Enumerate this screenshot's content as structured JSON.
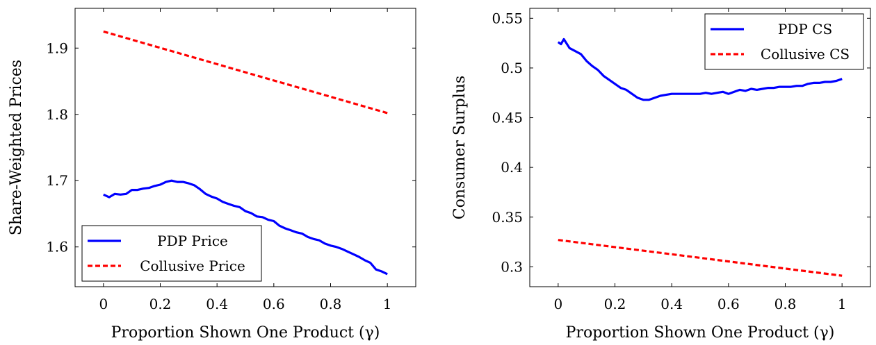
{
  "chart_data": [
    {
      "type": "line",
      "xlabel": "Proportion Shown One Product (γ)",
      "ylabel": "Share-Weighted Prices",
      "xlim": [
        -0.1,
        1.1
      ],
      "ylim": [
        1.54,
        1.96
      ],
      "xticks": [
        0,
        0.2,
        0.4,
        0.6,
        0.8,
        1
      ],
      "xtick_labels": [
        "0",
        "0.2",
        "0.4",
        "0.6",
        "0.8",
        "1"
      ],
      "yticks": [
        1.6,
        1.7,
        1.8,
        1.9
      ],
      "ytick_labels": [
        "1.6",
        "1.7",
        "1.8",
        "1.9"
      ],
      "legend_position": "bottom-left",
      "series": [
        {
          "name": "PDP Price",
          "color": "#0000ff",
          "style": "solid",
          "x": [
            0,
            0.02,
            0.04,
            0.06,
            0.08,
            0.1,
            0.12,
            0.14,
            0.16,
            0.18,
            0.2,
            0.22,
            0.24,
            0.26,
            0.28,
            0.3,
            0.32,
            0.34,
            0.36,
            0.38,
            0.4,
            0.42,
            0.44,
            0.46,
            0.48,
            0.5,
            0.52,
            0.54,
            0.56,
            0.58,
            0.6,
            0.62,
            0.64,
            0.66,
            0.68,
            0.7,
            0.72,
            0.74,
            0.76,
            0.78,
            0.8,
            0.82,
            0.84,
            0.86,
            0.88,
            0.9,
            0.92,
            0.94,
            0.96,
            0.98,
            1
          ],
          "y": [
            1.679,
            1.675,
            1.68,
            1.679,
            1.68,
            1.686,
            1.686,
            1.688,
            1.689,
            1.692,
            1.694,
            1.698,
            1.7,
            1.698,
            1.698,
            1.696,
            1.693,
            1.687,
            1.68,
            1.676,
            1.673,
            1.668,
            1.665,
            1.662,
            1.66,
            1.654,
            1.651,
            1.646,
            1.645,
            1.641,
            1.639,
            1.632,
            1.628,
            1.625,
            1.622,
            1.62,
            1.615,
            1.612,
            1.61,
            1.605,
            1.602,
            1.6,
            1.597,
            1.593,
            1.589,
            1.585,
            1.58,
            1.576,
            1.566,
            1.563,
            1.559
          ]
        },
        {
          "name": "Collusive Price",
          "color": "#ff0000",
          "style": "dashed",
          "x": [
            0,
            1
          ],
          "y": [
            1.925,
            1.802
          ]
        }
      ]
    },
    {
      "type": "line",
      "xlabel": "Proportion Shown One Product (γ)",
      "ylabel": "Consumer Surplus",
      "xlim": [
        -0.1,
        1.1
      ],
      "ylim": [
        0.28,
        0.56
      ],
      "xticks": [
        0,
        0.2,
        0.4,
        0.6,
        0.8,
        1
      ],
      "xtick_labels": [
        "0",
        "0.2",
        "0.4",
        "0.6",
        "0.8",
        "1"
      ],
      "yticks": [
        0.3,
        0.35,
        0.4,
        0.45,
        0.5,
        0.55
      ],
      "ytick_labels": [
        "0.3",
        "0.35",
        "0.4",
        "0.45",
        "0.5",
        "0.55"
      ],
      "legend_position": "top-right",
      "series": [
        {
          "name": "PDP CS",
          "color": "#0000ff",
          "style": "solid",
          "x": [
            0,
            0.01,
            0.02,
            0.04,
            0.06,
            0.08,
            0.1,
            0.12,
            0.14,
            0.16,
            0.18,
            0.2,
            0.22,
            0.24,
            0.26,
            0.28,
            0.3,
            0.32,
            0.34,
            0.36,
            0.38,
            0.4,
            0.42,
            0.44,
            0.46,
            0.48,
            0.5,
            0.52,
            0.54,
            0.56,
            0.58,
            0.6,
            0.62,
            0.64,
            0.66,
            0.68,
            0.7,
            0.72,
            0.74,
            0.76,
            0.78,
            0.8,
            0.82,
            0.84,
            0.86,
            0.88,
            0.9,
            0.92,
            0.94,
            0.96,
            0.98,
            1
          ],
          "y": [
            0.526,
            0.524,
            0.529,
            0.52,
            0.517,
            0.514,
            0.507,
            0.502,
            0.498,
            0.492,
            0.488,
            0.484,
            0.48,
            0.478,
            0.474,
            0.47,
            0.468,
            0.468,
            0.47,
            0.472,
            0.473,
            0.474,
            0.474,
            0.474,
            0.474,
            0.474,
            0.474,
            0.475,
            0.474,
            0.475,
            0.476,
            0.474,
            0.476,
            0.478,
            0.477,
            0.479,
            0.478,
            0.479,
            0.48,
            0.48,
            0.481,
            0.481,
            0.481,
            0.482,
            0.482,
            0.484,
            0.485,
            0.485,
            0.486,
            0.486,
            0.487,
            0.489
          ]
        },
        {
          "name": "Collusive CS",
          "color": "#ff0000",
          "style": "dashed",
          "x": [
            0,
            1
          ],
          "y": [
            0.327,
            0.291
          ]
        }
      ]
    }
  ]
}
